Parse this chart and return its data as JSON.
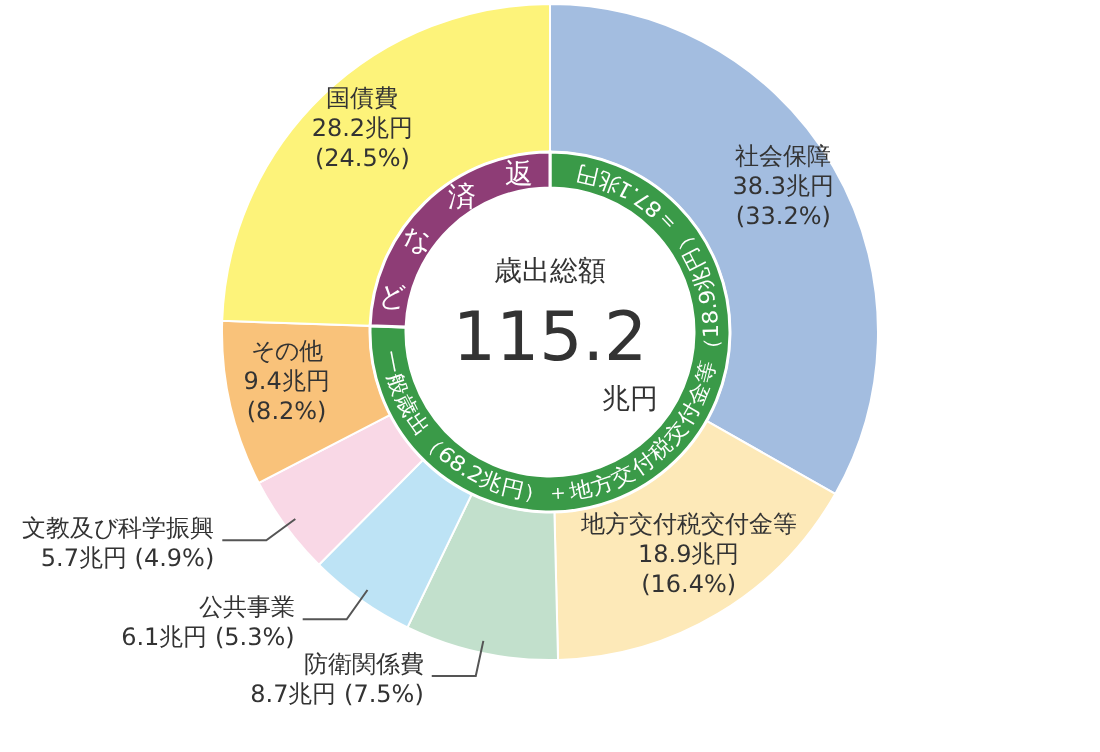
{
  "chart_data": [
    {
      "type": "donut",
      "title": "歳出総額",
      "annotations": [
        "115.2",
        "兆円"
      ],
      "categories": [
        "社会保障",
        "地方交付税交付金等",
        "防衛関係費",
        "公共事業",
        "文教及び科学振興",
        "その他",
        "国債費"
      ],
      "values": [
        38.3,
        18.9,
        8.7,
        6.1,
        5.7,
        9.4,
        28.2
      ],
      "value_labels": [
        "38.3兆円 (33.2%)",
        "18.9兆円 (16.4%)",
        "8.7兆円 (7.5%)",
        "6.1兆円 (5.3%)",
        "5.7兆円 (4.9%)",
        "9.4兆円 (8.2%)",
        "28.2兆円 (24.5%)"
      ],
      "colors": [
        "#a3bde0",
        "#fde9b8",
        "#c2e0cc",
        "#bde3f5",
        "#f9d8e6",
        "#f9c27a",
        "#fdf37a"
      ]
    },
    {
      "type": "donut",
      "categories": [
        "一般歳出（68.2兆円）＋地方交付税交付金等（18.9兆円）＝87.1兆円",
        "返済など"
      ],
      "values": [
        87.1,
        28.2
      ],
      "colors": [
        "#3a9a48",
        "#8e3d76"
      ]
    }
  ]
}
